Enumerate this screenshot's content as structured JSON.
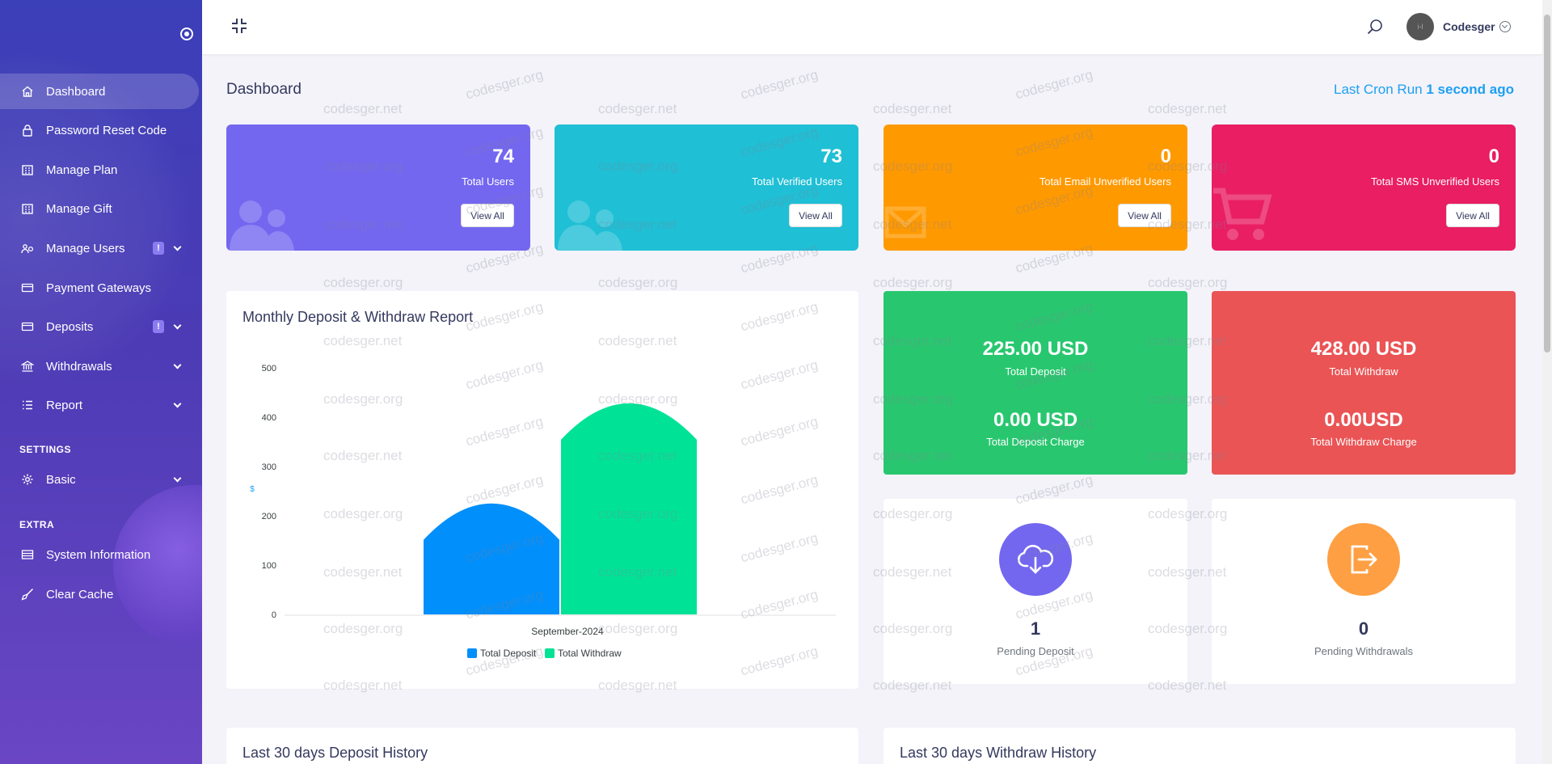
{
  "sidebar": {
    "menu": [
      {
        "label": "Dashboard",
        "icon": "home-icon",
        "active": true
      },
      {
        "label": "Password Reset Code",
        "icon": "lock-icon"
      },
      {
        "label": "Manage Plan",
        "icon": "building-icon"
      },
      {
        "label": "Manage Gift",
        "icon": "building-icon"
      },
      {
        "label": "Manage Users",
        "icon": "users-cog-icon",
        "badge": "!",
        "expandable": true
      },
      {
        "label": "Payment Gateways",
        "icon": "credit-card-icon"
      },
      {
        "label": "Deposits",
        "icon": "credit-card-icon",
        "badge": "!",
        "expandable": true
      },
      {
        "label": "Withdrawals",
        "icon": "bank-icon",
        "expandable": true
      },
      {
        "label": "Report",
        "icon": "list-icon",
        "expandable": true
      }
    ],
    "settings_heading": "SETTINGS",
    "settings_menu": [
      {
        "label": "Basic",
        "icon": "gear-icon",
        "expandable": true
      }
    ],
    "extra_heading": "EXTRA",
    "extra_menu": [
      {
        "label": "System Information",
        "icon": "server-icon"
      },
      {
        "label": "Clear Cache",
        "icon": "broom-icon"
      }
    ]
  },
  "topbar": {
    "username": "Codesger",
    "avatar_text": "i-l"
  },
  "page_title": "Dashboard",
  "cron": {
    "prefix": "Last Cron Run",
    "value": "1 second ago"
  },
  "stat_cards": [
    {
      "value": "74",
      "label": "Total Users",
      "button": "View All",
      "color": "#7367f0",
      "icon": "users-icon"
    },
    {
      "value": "73",
      "label": "Total Verified Users",
      "button": "View All",
      "color": "#1fbfd5",
      "icon": "users-icon"
    },
    {
      "value": "0",
      "label": "Total Email Unverified Users",
      "button": "View All",
      "color": "#ff9900",
      "icon": "envelope-icon"
    },
    {
      "value": "0",
      "label": "Total SMS Unverified Users",
      "button": "View All",
      "color": "#e91e63",
      "icon": "cart-icon"
    }
  ],
  "chart_card": {
    "title": "Monthly Deposit & Withdraw Report"
  },
  "chart_data": {
    "type": "bar",
    "categories": [
      "September-2024"
    ],
    "series": [
      {
        "name": "Total Deposit",
        "values": [
          225
        ],
        "color": "#008ffb"
      },
      {
        "name": "Total Withdraw",
        "values": [
          428
        ],
        "color": "#00e396"
      }
    ],
    "ylabel": "$",
    "ylim": [
      0,
      500
    ],
    "yticks": [
      0,
      100,
      200,
      300,
      400,
      500
    ],
    "legend": "bottom"
  },
  "totals": {
    "deposit": {
      "amount": "225.00 USD",
      "label": "Total Deposit",
      "charge": "0.00 USD",
      "charge_label": "Total Deposit Charge",
      "color": "#28c76f"
    },
    "withdraw": {
      "amount": "428.00 USD",
      "label": "Total Withdraw",
      "charge": "0.00USD",
      "charge_label": "Total Withdraw Charge",
      "color": "#ea5455"
    }
  },
  "pending": {
    "deposit": {
      "value": "1",
      "label": "Pending Deposit",
      "color": "#7367f0",
      "icon": "cloud-download-icon"
    },
    "withdraw": {
      "value": "0",
      "label": "Pending Withdrawals",
      "color": "#ff9f43",
      "icon": "sign-out-icon"
    }
  },
  "history": {
    "deposit_title": "Last 30 days Deposit History",
    "withdraw_title": "Last 30 days Withdraw History"
  },
  "watermarks": {
    "net": "codesger.net",
    "org": "codesger.org"
  }
}
